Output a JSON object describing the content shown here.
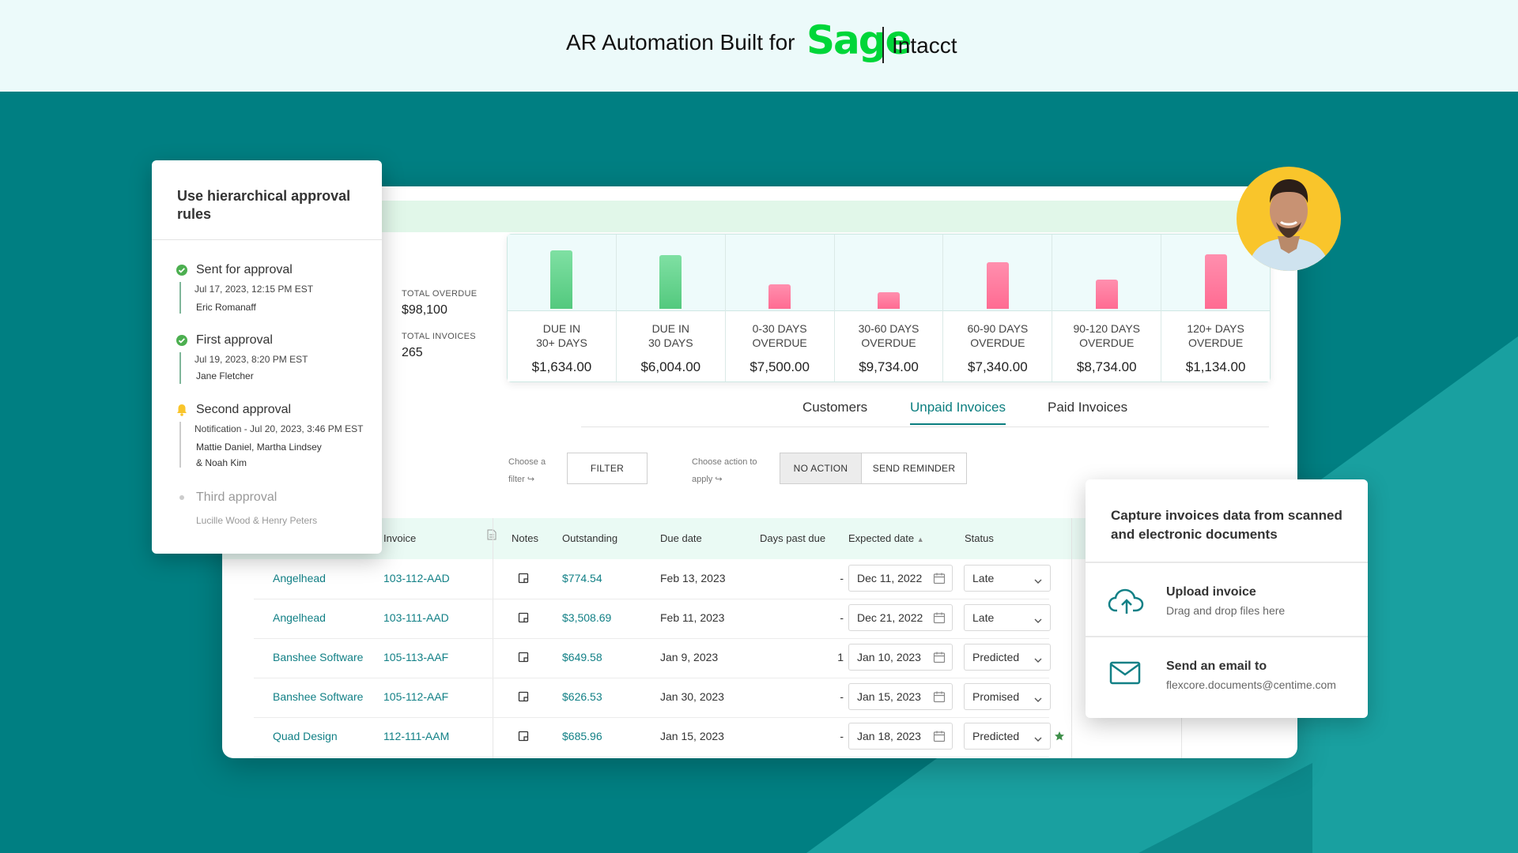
{
  "header": {
    "title": "AR Automation Built for",
    "logo_brand": "Sage",
    "logo_product": "Intacct"
  },
  "summary": {
    "total_overdue_label": "TOTAL OVERDUE",
    "total_overdue_value": "$98,100",
    "total_invoices_label": "TOTAL INVOICES",
    "total_invoices_value": "265"
  },
  "buckets": [
    {
      "label": "DUE IN\n30+ DAYS",
      "value": "$1,634.00",
      "bar_fraction": 0.82,
      "color": "green"
    },
    {
      "label": "DUE IN\n30 DAYS",
      "value": "$6,004.00",
      "bar_fraction": 0.76,
      "color": "green"
    },
    {
      "label": "0-30 DAYS\nOVERDUE",
      "value": "$7,500.00",
      "bar_fraction": 0.35,
      "color": "pink"
    },
    {
      "label": "30-60 DAYS\nOVERDUE",
      "value": "$9,734.00",
      "bar_fraction": 0.23,
      "color": "pink"
    },
    {
      "label": "60-90 DAYS\nOVERDUE",
      "value": "$7,340.00",
      "bar_fraction": 0.65,
      "color": "pink"
    },
    {
      "label": "90-120 DAYS\nOVERDUE",
      "value": "$8,734.00",
      "bar_fraction": 0.41,
      "color": "pink"
    },
    {
      "label": "120+ DAYS\nOVERDUE",
      "value": "$1,134.00",
      "bar_fraction": 0.77,
      "color": "pink"
    }
  ],
  "tabs": [
    "Customers",
    "Unpaid Invoices",
    "Paid Invoices"
  ],
  "active_tab": "Unpaid Invoices",
  "filters": {
    "filter_hint_1": "Choose a",
    "filter_hint_2": "filter",
    "filter_button": "FILTER",
    "action_hint_1": "Choose action to",
    "action_hint_2": "apply",
    "no_action_button": "NO ACTION",
    "send_reminder_button": "SEND REMINDER"
  },
  "table": {
    "columns": [
      "Invoice",
      "Notes",
      "Outstanding",
      "Due date",
      "Days past due",
      "Expected date",
      "Status"
    ],
    "rows": [
      {
        "customer": "Angelhead",
        "invoice": "103-112-AAD",
        "outstanding": "$774.54",
        "due": "Feb 13, 2023",
        "days": "-",
        "expected": "Dec 11, 2022",
        "status": "Late",
        "starred": false
      },
      {
        "customer": "Angelhead",
        "invoice": "103-111-AAD",
        "outstanding": "$3,508.69",
        "due": "Feb 11, 2023",
        "days": "-",
        "expected": "Dec 21, 2022",
        "status": "Late",
        "starred": false
      },
      {
        "customer": "Banshee Software",
        "invoice": "105-113-AAF",
        "outstanding": "$649.58",
        "due": "Jan 9, 2023",
        "days": "1",
        "expected": "Jan 10, 2023",
        "status": "Predicted",
        "starred": false
      },
      {
        "customer": "Banshee Software",
        "invoice": "105-112-AAF",
        "outstanding": "$626.53",
        "due": "Jan 30, 2023",
        "days": "-",
        "expected": "Jan 15, 2023",
        "status": "Promised",
        "starred": false
      },
      {
        "customer": "Quad Design",
        "invoice": "112-111-AAM",
        "outstanding": "$685.96",
        "due": "Jan 15, 2023",
        "days": "-",
        "expected": "Jan 18, 2023",
        "status": "Predicted",
        "starred": true
      }
    ]
  },
  "approval": {
    "title": "Use hierarchical approval rules",
    "steps": [
      {
        "title": "Sent for approval",
        "date": "Jul 17, 2023, 12:15 PM EST",
        "people": [
          "Eric Romanaff"
        ],
        "state": "done"
      },
      {
        "title": "First approval",
        "date": "Jul 19, 2023, 8:20 PM EST",
        "people": [
          "Jane Fletcher"
        ],
        "state": "done"
      },
      {
        "title": "Second approval",
        "date": "Notification - Jul 20, 2023, 3:46 PM EST",
        "people": [
          "Mattie Daniel, Martha Lindsey",
          "& Noah Kim"
        ],
        "state": "pending"
      },
      {
        "title": "Third approval",
        "date": "",
        "people": [
          "Lucille Wood & Henry Peters"
        ],
        "state": "future"
      }
    ]
  },
  "capture": {
    "title": "Capture invoices data from scanned and electronic documents",
    "upload_title": "Upload invoice",
    "upload_sub": "Drag and drop files here",
    "email_title": "Send an email to",
    "email_sub": "flexcore.documents@centime.com"
  },
  "colors": {
    "accent": "#0b7e7f",
    "bg_teal": "#007f82",
    "done_green": "#4caf50",
    "pending_yellow": "#f9c52b"
  }
}
